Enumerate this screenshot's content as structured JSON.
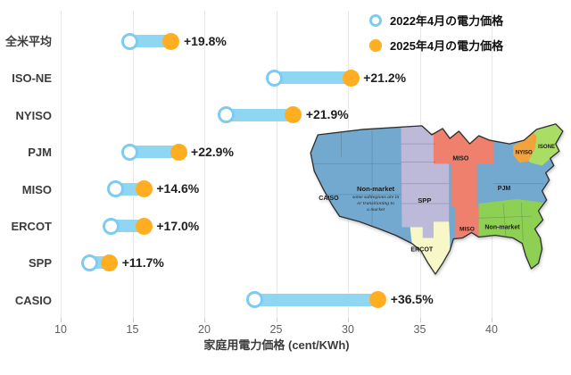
{
  "colors": {
    "bar": "#8FD6F3",
    "circle_2022_ring": "#7DCBF0",
    "circle_2025_fill": "#FFAE21",
    "grid": "#E8E8E8",
    "map": {
      "west_blue": "#74A9CF",
      "caiso_teal": "#8FD6C0",
      "spp_lavender": "#BDBAD9",
      "ercot_yellow": "#F7F7C8",
      "miso_red": "#F0806E",
      "southeast_green": "#8ED053",
      "nyiso_orange": "#F3A33C",
      "isone_green": "#A9DD66"
    }
  },
  "legend": [
    {
      "label": "2022年4月の電力価格",
      "marker": "open-circle"
    },
    {
      "label": "2025年4月の電力価格",
      "marker": "filled-circle"
    }
  ],
  "chart_data": {
    "type": "scatter",
    "subtype": "dumbbell",
    "title": "",
    "categories": [
      "全米平均",
      "ISO-NE",
      "NYISO",
      "PJM",
      "MISO",
      "ERCOT",
      "SPP",
      "CASIO"
    ],
    "series": [
      {
        "name": "2022年4月の電力価格",
        "values": [
          14.8,
          24.9,
          21.5,
          14.8,
          13.8,
          13.5,
          12.0,
          23.5
        ]
      },
      {
        "name": "2025年4月の電力価格",
        "values": [
          17.7,
          30.2,
          26.2,
          18.2,
          15.8,
          15.8,
          13.4,
          32.1
        ]
      }
    ],
    "annotations": [
      "+19.8%",
      "+21.2%",
      "+21.9%",
      "+22.9%",
      "+14.6%",
      "+17.0%",
      "+11.7%",
      "+36.5%"
    ],
    "xlabel": "家庭用電力価格 (cent/KWh)",
    "ylabel": "",
    "xticks": [
      10,
      15,
      20,
      25,
      30,
      35,
      40
    ],
    "xlim": [
      9.7,
      43
    ],
    "grid": true,
    "legend_position": "top-right"
  },
  "map": {
    "labels": {
      "caiso": "CAISO",
      "west_nonmarket_title": "Non-market",
      "west_nonmarket_sub1": "some subregions are in",
      "west_nonmarket_sub2": "or transitioning to",
      "west_nonmarket_sub3": "a market",
      "spp": "SPP",
      "ercot": "ERCOT",
      "miso_north": "MISO",
      "miso_south": "MISO",
      "pjm": "PJM",
      "southeast_nonmarket": "Non-market",
      "nyiso": "NYISO",
      "isone": "ISONE"
    }
  }
}
